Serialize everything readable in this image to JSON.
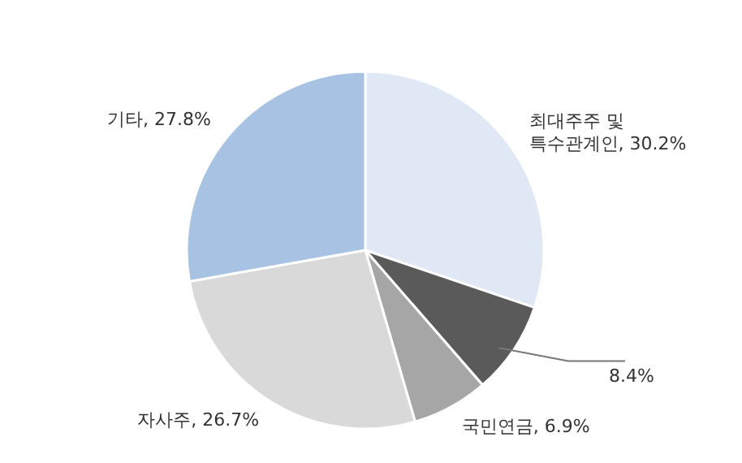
{
  "chart_data": {
    "type": "pie",
    "categories": [
      "최대주주 및 특수관계인",
      null,
      "국민연금",
      "자사주",
      "기타"
    ],
    "values": [
      30.2,
      8.4,
      6.9,
      26.7,
      27.8
    ],
    "value_labels": [
      "30.2%",
      "8.4%",
      "6.9%",
      "26.7%",
      "27.8%"
    ],
    "colors": [
      "#dfe8f4",
      "#5a5a5a",
      "#a6a6a6",
      "#d9d9d9",
      "#a7c2e2"
    ]
  }
}
